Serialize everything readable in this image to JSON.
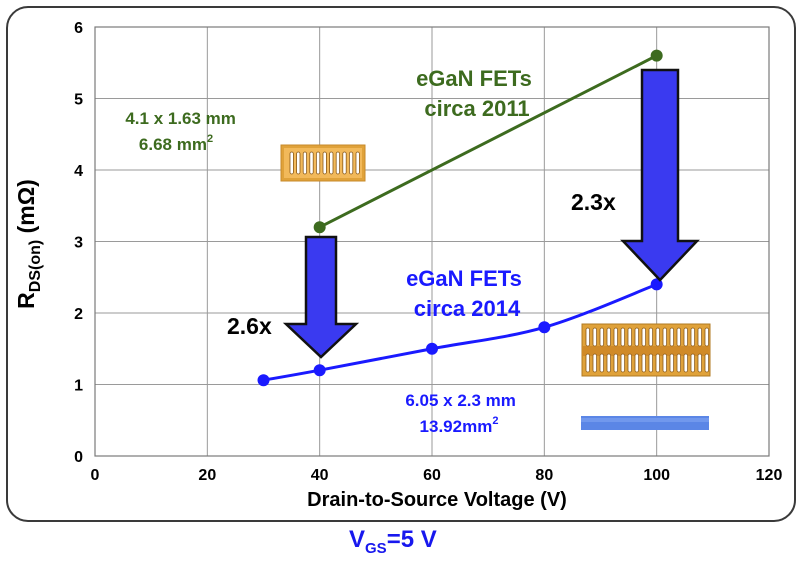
{
  "chart_data": {
    "type": "line",
    "xlabel": "Drain-to-Source Voltage (V)",
    "ylabel": {
      "main": "R",
      "sub": "DS(on)",
      "tail": " (mΩ)"
    },
    "xlim": [
      0,
      120
    ],
    "ylim": [
      0,
      6
    ],
    "xticks": [
      0,
      20,
      40,
      60,
      80,
      100,
      120
    ],
    "yticks": [
      0,
      1,
      2,
      3,
      4,
      5,
      6
    ],
    "grid": true,
    "series": [
      {
        "name": "eGaN FETs circa 2011",
        "color": "#3d6b1f",
        "x": [
          40,
          100
        ],
        "y": [
          3.2,
          5.6
        ]
      },
      {
        "name": "eGaN FETs circa 2014",
        "color": "#1a1aff",
        "x": [
          30,
          40,
          60,
          80,
          100
        ],
        "y": [
          1.06,
          1.2,
          1.5,
          1.8,
          2.4
        ]
      }
    ],
    "annotations": {
      "series_2011": {
        "line1": "eGaN FETs",
        "line2": "circa 2011"
      },
      "series_2014": {
        "line1": "eGaN FETs",
        "line2": "circa 2014"
      },
      "size_2011": {
        "line1": "4.1 x 1.63 mm",
        "line2": "6.68 mm",
        "sup": "2"
      },
      "size_2014": {
        "line1": "6.05 x 2.3 mm",
        "line2": "13.92mm",
        "sup": "2"
      },
      "reduction_40": "2.6x",
      "reduction_100": "2.3x"
    },
    "colors": {
      "arrow_fill": "#3a3af0",
      "arrow_stroke": "#111111",
      "die_gold": "#e0a23a",
      "die_blue": "#5b86e6"
    }
  },
  "footer": {
    "vgs_main": "V",
    "vgs_sub": "GS",
    "vgs_tail": "=5 V"
  }
}
